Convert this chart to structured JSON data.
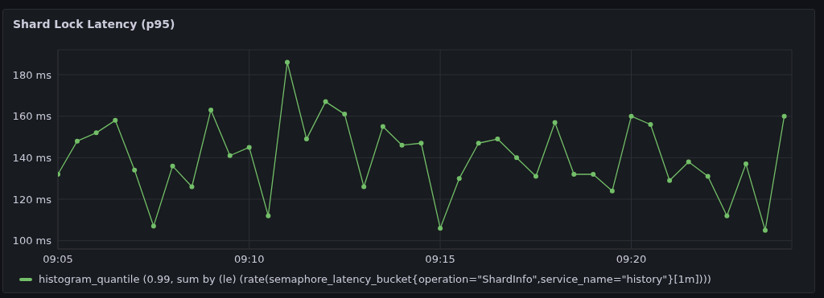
{
  "chart_data": {
    "type": "line",
    "title": "Shard Lock Latency (p95)",
    "x": [
      9.0833,
      9.0917,
      9.1,
      9.1083,
      9.1167,
      9.125,
      9.1333,
      9.1417,
      9.15,
      9.1583,
      9.1667,
      9.175,
      9.1833,
      9.1917,
      9.2,
      9.2083,
      9.2167,
      9.225,
      9.2333,
      9.2417,
      9.25,
      9.2583,
      9.2667,
      9.275,
      9.2833,
      9.2917,
      9.3,
      9.3083,
      9.3167,
      9.325,
      9.3333,
      9.3417,
      9.35,
      9.3583,
      9.3667,
      9.375,
      9.3833,
      9.3917,
      9.4
    ],
    "series": [
      {
        "name": "histogram_quantile (0.99, sum by (le) (rate(semaphore_latency_bucket{operation=\"ShardInfo\",service_name=\"history\"}[1m])))",
        "color": "#73bf69",
        "values": [
          132,
          148,
          152,
          158,
          134,
          107,
          136,
          126,
          163,
          141,
          145,
          112,
          186,
          149,
          167,
          161,
          126,
          155,
          146,
          147,
          106,
          130,
          147,
          149,
          140,
          131,
          157,
          132,
          132,
          124,
          160,
          156,
          129,
          138,
          131,
          112,
          137,
          105,
          160
        ]
      }
    ],
    "xlim": [
      9.0833,
      9.4033
    ],
    "xticks": [
      {
        "value": 9.0833,
        "label": "09:05"
      },
      {
        "value": 9.1667,
        "label": "09:10"
      },
      {
        "value": 9.25,
        "label": "09:15"
      },
      {
        "value": 9.3333,
        "label": "09:20"
      }
    ],
    "ylim": [
      96,
      192
    ],
    "yticks": [
      {
        "value": 100,
        "label": "100 ms"
      },
      {
        "value": 120,
        "label": "120 ms"
      },
      {
        "value": 140,
        "label": "140 ms"
      },
      {
        "value": 160,
        "label": "160 ms"
      },
      {
        "value": 180,
        "label": "180 ms"
      }
    ],
    "grid": true,
    "legend": "bottom",
    "marker": "circle",
    "line_style": "solid"
  }
}
